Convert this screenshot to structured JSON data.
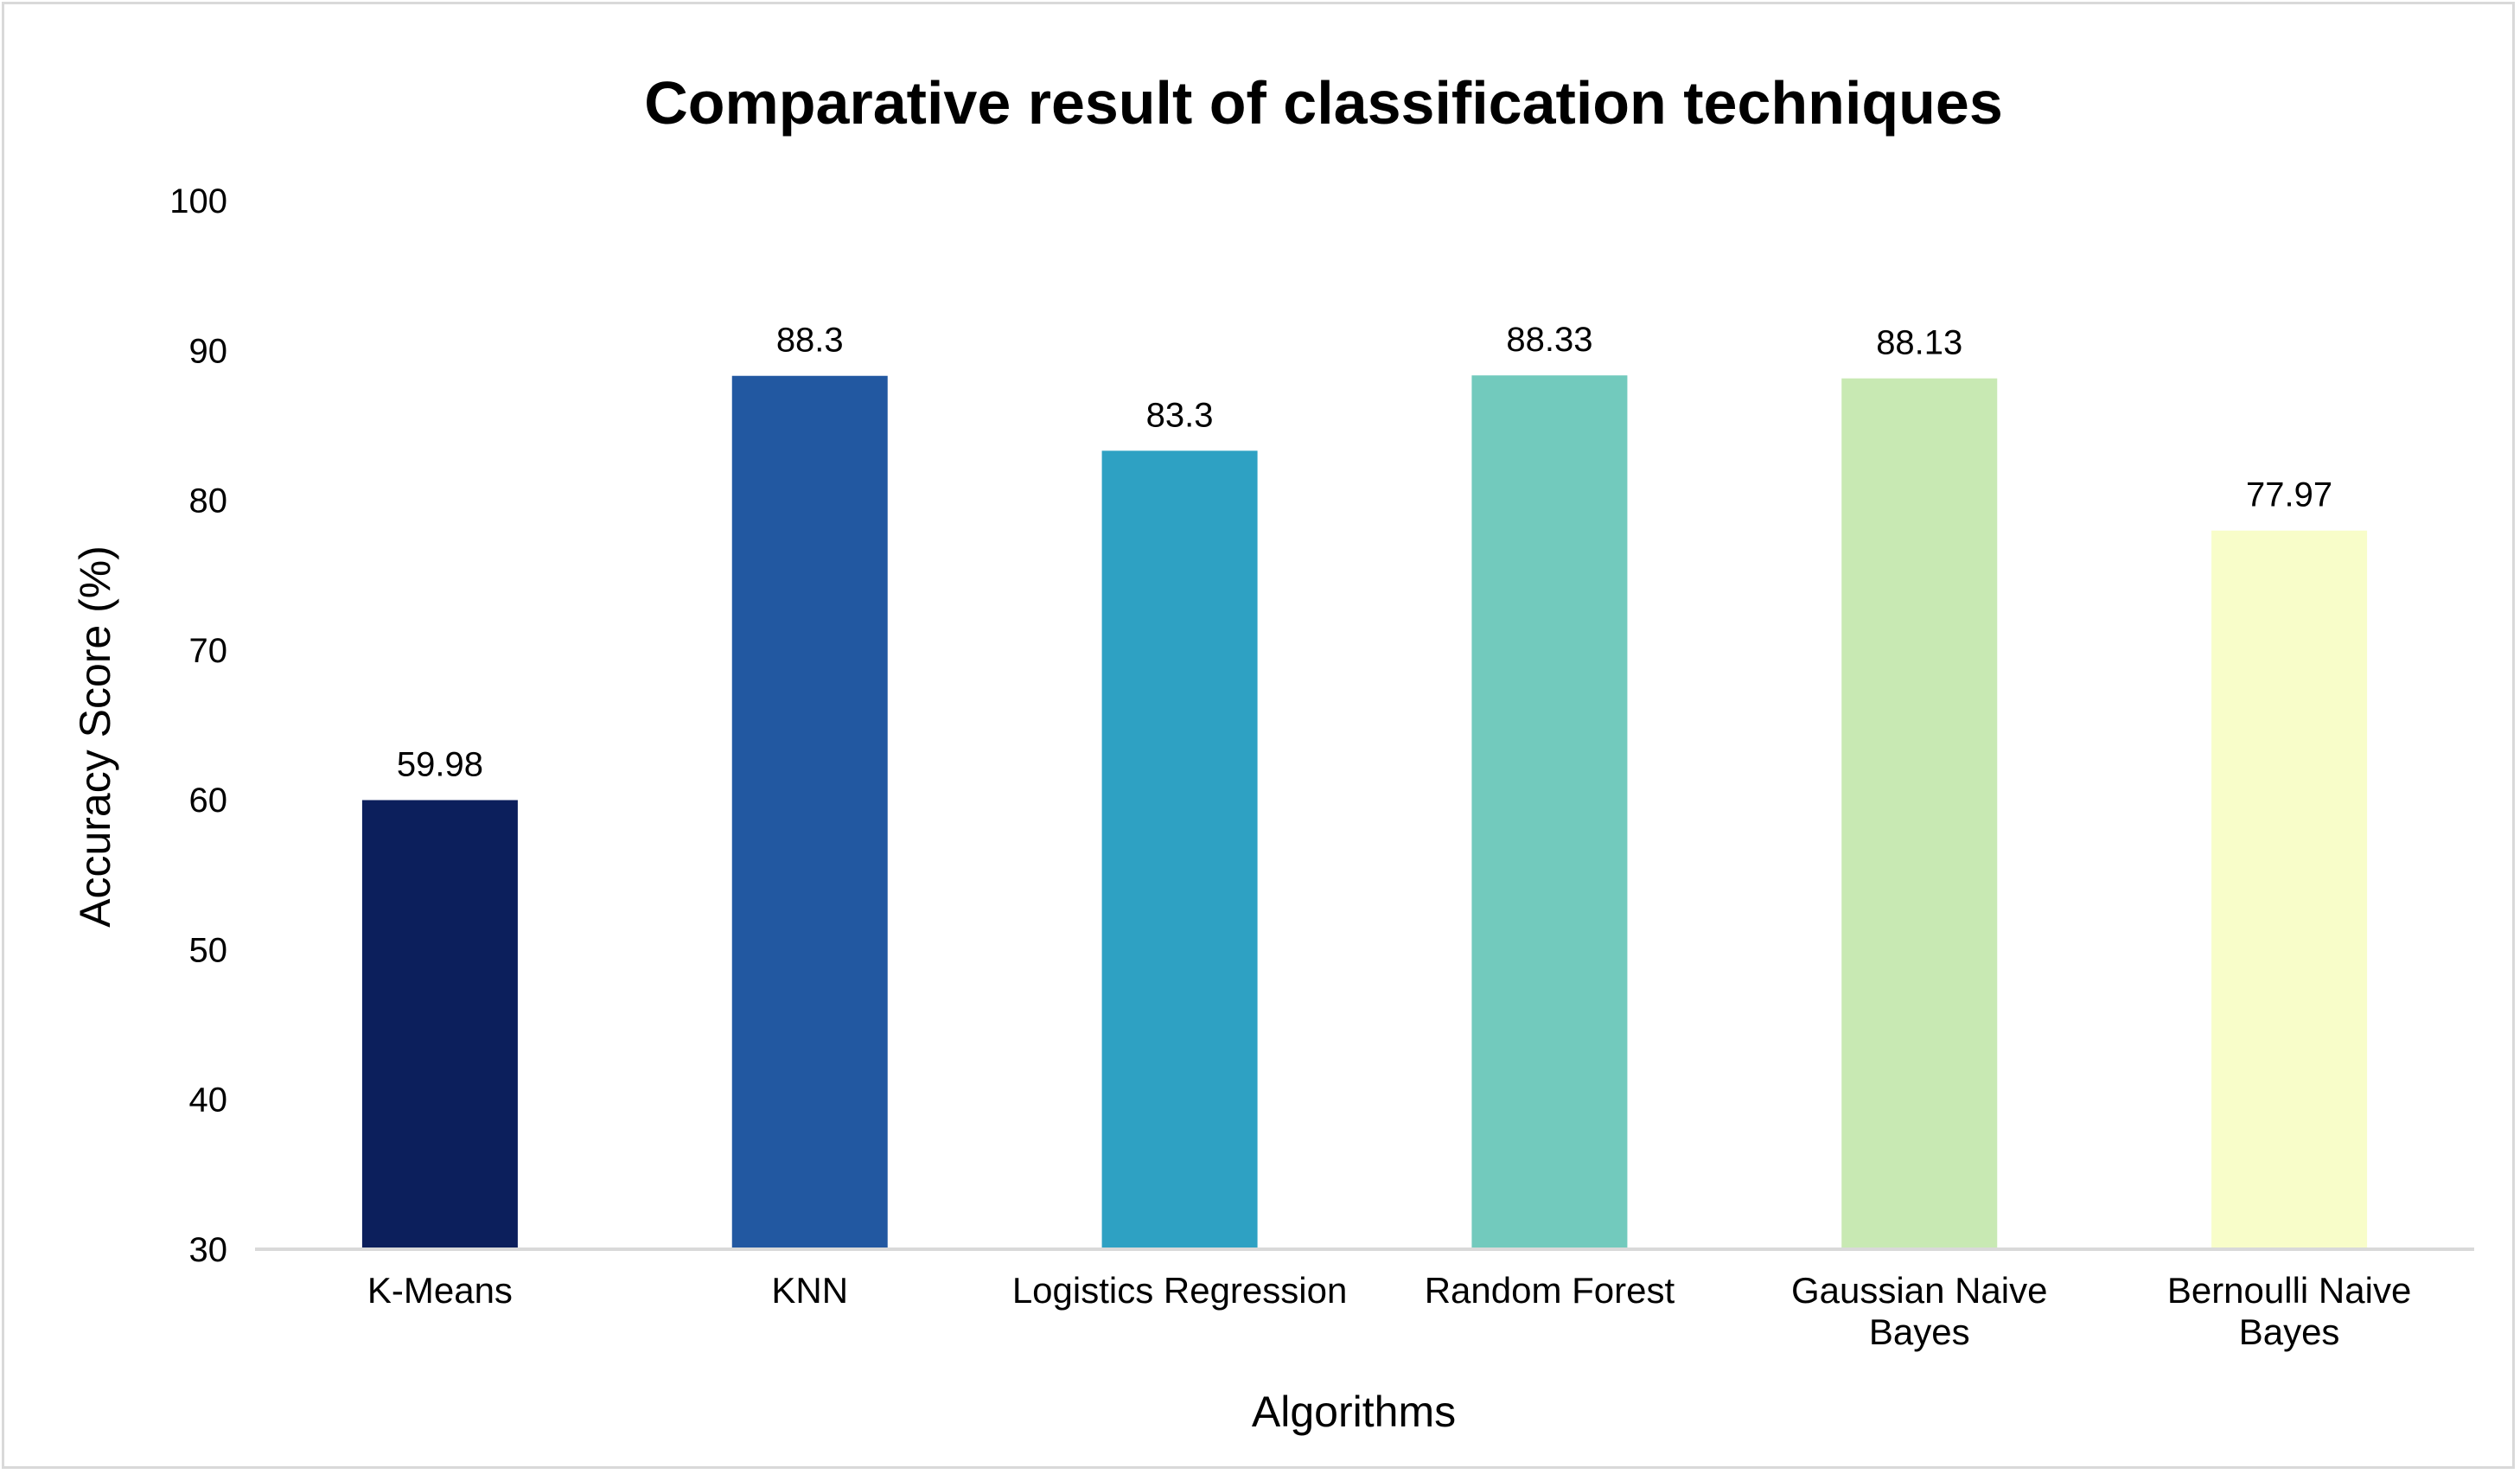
{
  "chart_data": {
    "type": "bar",
    "title": "Comparative result of classification techniques",
    "xlabel": "Algorithms",
    "ylabel": "Accuracy Score (%)",
    "ylim": [
      30,
      100
    ],
    "yticks": [
      30,
      40,
      50,
      60,
      70,
      80,
      90,
      100
    ],
    "grid": false,
    "legend": "none",
    "categories": [
      "K-Means",
      "KNN",
      "Logistics Regression",
      "Random Forest",
      "Gaussian Naive Bayes",
      "Bernoulli Naive Bayes"
    ],
    "category_lines": [
      [
        "K-Means"
      ],
      [
        "KNN"
      ],
      [
        "Logistics Regression"
      ],
      [
        "Random Forest"
      ],
      [
        "Gaussian Naive",
        "Bayes"
      ],
      [
        "Bernoulli Naive",
        "Bayes"
      ]
    ],
    "values": [
      59.98,
      88.3,
      83.3,
      88.33,
      88.13,
      77.97
    ],
    "data_labels": [
      "59.98",
      "88.3",
      "83.3",
      "88.33",
      "88.13",
      "77.97"
    ],
    "colors": [
      "#0c1f5c",
      "#2258a1",
      "#2ea1c3",
      "#72cabd",
      "#c8e9b3",
      "#f8fdc9"
    ],
    "axis_color": "#d9d9d9"
  }
}
